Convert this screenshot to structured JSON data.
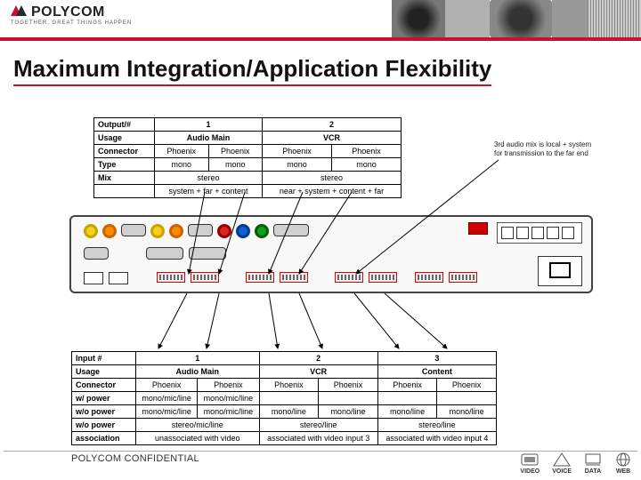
{
  "brand": {
    "name": "POLYCOM",
    "tagline": "TOGETHER, GREAT THINGS HAPPEN"
  },
  "title": "Maximum Integration/Application Flexibility",
  "annotation": {
    "line1": "3rd audio mix is local + system",
    "line2": "for transmission to the far end"
  },
  "table_top": {
    "rows": [
      {
        "label": "Output/#",
        "cells": [
          "1",
          "2"
        ],
        "spans": [
          2,
          2
        ]
      },
      {
        "label": "Usage",
        "cells": [
          "Audio Main",
          "VCR"
        ],
        "spans": [
          2,
          2
        ]
      },
      {
        "label": "Connector",
        "cells": [
          "Phoenix",
          "Phoenix",
          "Phoenix",
          "Phoenix"
        ],
        "spans": [
          1,
          1,
          1,
          1
        ]
      },
      {
        "label": "Type",
        "cells": [
          "mono",
          "mono",
          "mono",
          "mono"
        ],
        "spans": [
          1,
          1,
          1,
          1
        ]
      },
      {
        "label": "Mix",
        "cells": [
          "stereo",
          "stereo"
        ],
        "spans": [
          2,
          2
        ]
      },
      {
        "label": "",
        "cells": [
          "system + far + content",
          "near + system + content + far"
        ],
        "spans": [
          2,
          2
        ]
      }
    ]
  },
  "table_bottom": {
    "rows": [
      {
        "label": "Input #",
        "cells": [
          "1",
          "2",
          "3"
        ],
        "spans": [
          2,
          2,
          2
        ]
      },
      {
        "label": "Usage",
        "cells": [
          "Audio Main",
          "VCR",
          "Content"
        ],
        "spans": [
          2,
          2,
          2
        ]
      },
      {
        "label": "Connector",
        "cells": [
          "Phoenix",
          "Phoenix",
          "Phoenix",
          "Phoenix",
          "Phoenix",
          "Phoenix"
        ],
        "spans": [
          1,
          1,
          1,
          1,
          1,
          1
        ]
      },
      {
        "label": "w/ power",
        "cells": [
          "mono/mic/line",
          "mono/mic/line",
          "",
          "",
          "",
          ""
        ],
        "spans": [
          1,
          1,
          1,
          1,
          1,
          1
        ]
      },
      {
        "label": "w/o power",
        "cells": [
          "mono/mic/line",
          "mono/mic/line",
          "mono/line",
          "mono/line",
          "mono/line",
          "mono/line"
        ],
        "spans": [
          1,
          1,
          1,
          1,
          1,
          1
        ]
      },
      {
        "label": "w/o power",
        "cells": [
          "stereo/mic/line",
          "stereo/line",
          "stereo/line"
        ],
        "spans": [
          2,
          2,
          2
        ]
      },
      {
        "label": "association",
        "cells": [
          "unassociated with video",
          "associated with video input 3",
          "associated with video input 4"
        ],
        "spans": [
          2,
          2,
          2
        ]
      }
    ]
  },
  "ports": {
    "colored": [
      {
        "color": "#f5d020",
        "border": "#c9a400"
      },
      {
        "color": "#ff8a00",
        "border": "#c96400"
      },
      {
        "color": "#d22",
        "border": "#900"
      },
      {
        "color": "#1060d0",
        "border": "#003a90"
      },
      {
        "color": "#10a020",
        "border": "#006000"
      }
    ],
    "red_rj45": "#d00000"
  },
  "footer": {
    "confidential": "POLYCOM CONFIDENTIAL",
    "icons": [
      {
        "label": "VIDEO"
      },
      {
        "label": "VOICE"
      },
      {
        "label": "DATA"
      },
      {
        "label": "WEB"
      }
    ]
  },
  "colors": {
    "accent": "#c41230",
    "rule": "#aaa",
    "text": "#111"
  }
}
